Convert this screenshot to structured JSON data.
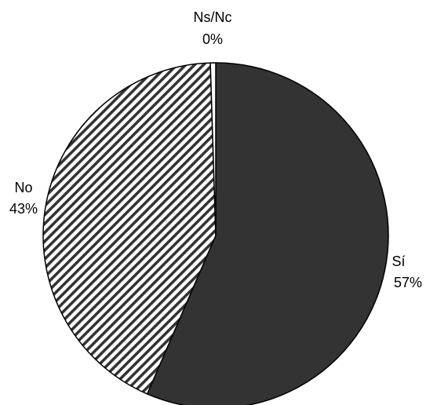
{
  "chart_data": {
    "type": "pie",
    "title": "",
    "start_angle_deg": 0,
    "direction": "clockwise",
    "slices": [
      {
        "label": "Sí",
        "value_label": "57%",
        "value": 56.5,
        "fill": "solid",
        "color": "#333333"
      },
      {
        "label": "No",
        "value_label": "43%",
        "value": 43.0,
        "fill": "diagonal-hatch",
        "color": "#333333"
      },
      {
        "label": "Ns/Nc",
        "value_label": "0%",
        "value": 0.5,
        "fill": "none",
        "color": "#ffffff"
      }
    ],
    "legend": "none",
    "edge_color": "#000000"
  }
}
